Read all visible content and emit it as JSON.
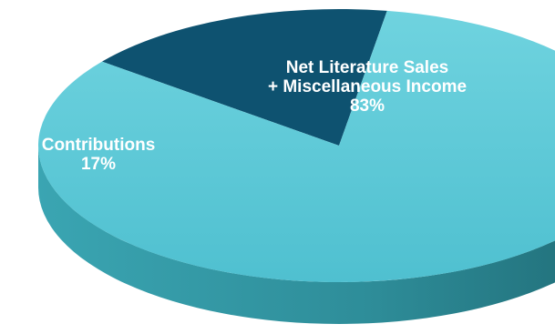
{
  "chart_data": {
    "type": "pie",
    "style": "3d",
    "title": "",
    "slices": [
      {
        "label_lines": [
          "Net Literature Sales",
          "+ Miscellaneous Income"
        ],
        "value": 83,
        "value_label": "83%",
        "color": "#4fc7d6"
      },
      {
        "label_lines": [
          "Contributions"
        ],
        "value": 17,
        "value_label": "17%",
        "color": "#0e5270"
      }
    ],
    "colors": {
      "slice_large_top": "#4fc7d6",
      "slice_large_side": "#2e8d99",
      "slice_small_top": "#0e5270",
      "slice_small_side": "#0a3a52",
      "label_text": "#ffffff"
    }
  }
}
